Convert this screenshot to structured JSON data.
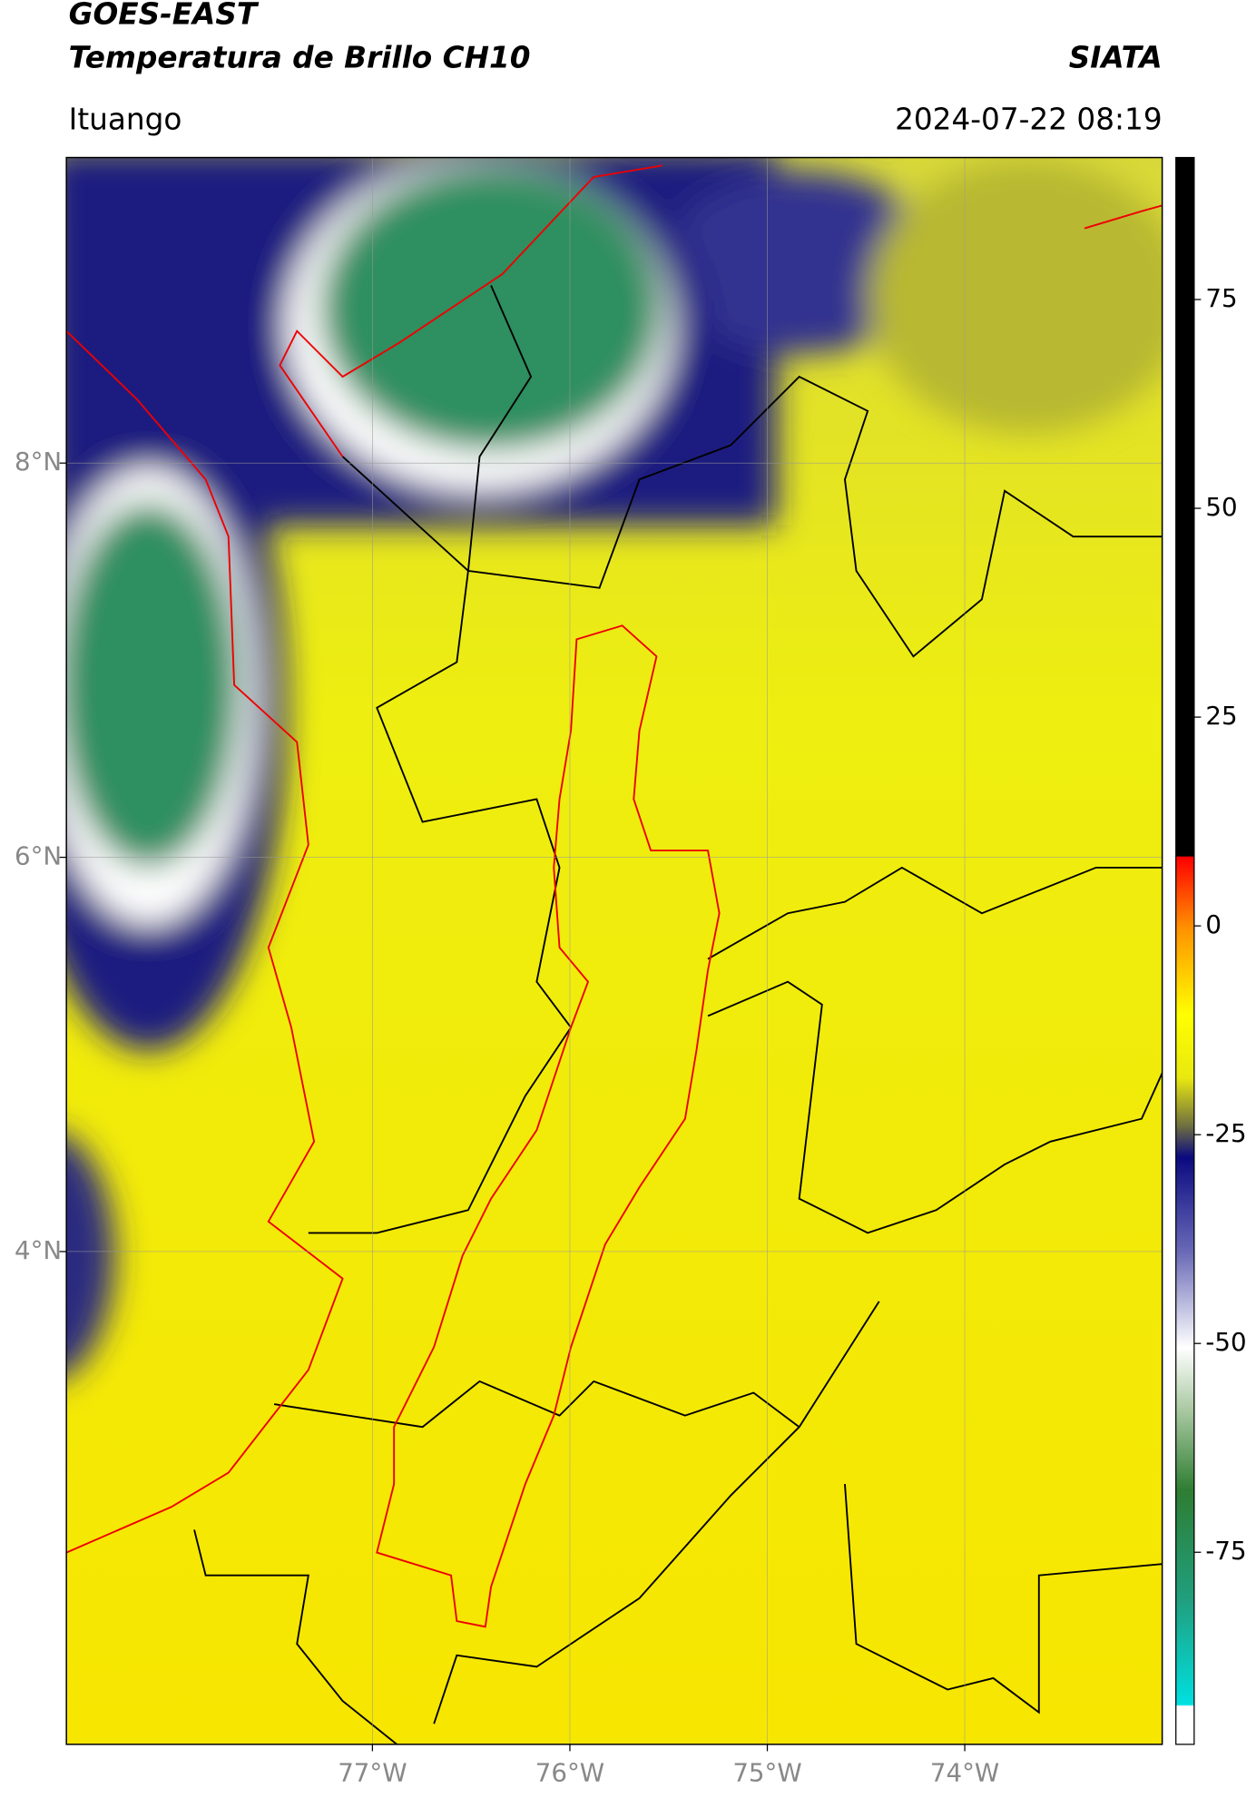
{
  "chart_data": {
    "type": "map",
    "title": "GOES-EAST",
    "subtitle": "Temperatura de Brillo CH10",
    "brand": "SIATA",
    "location": "Ituango",
    "timestamp": "2024-07-22 08:19",
    "xlim": [
      -78.55,
      -73.0
    ],
    "ylim": [
      1.5,
      9.55
    ],
    "xticks": [
      {
        "value": -77,
        "label": "77°W"
      },
      {
        "value": -76,
        "label": "76°W"
      },
      {
        "value": -75,
        "label": "75°W"
      },
      {
        "value": -74,
        "label": "74°W"
      }
    ],
    "yticks": [
      {
        "value": 8,
        "label": "8°N"
      },
      {
        "value": 6,
        "label": "6°N"
      },
      {
        "value": 4,
        "label": "4°N"
      }
    ],
    "colorbar": {
      "lim": [
        -98,
        92
      ],
      "ticks": [
        75,
        50,
        25,
        0,
        -25,
        -50,
        -75
      ]
    },
    "grid": true
  }
}
